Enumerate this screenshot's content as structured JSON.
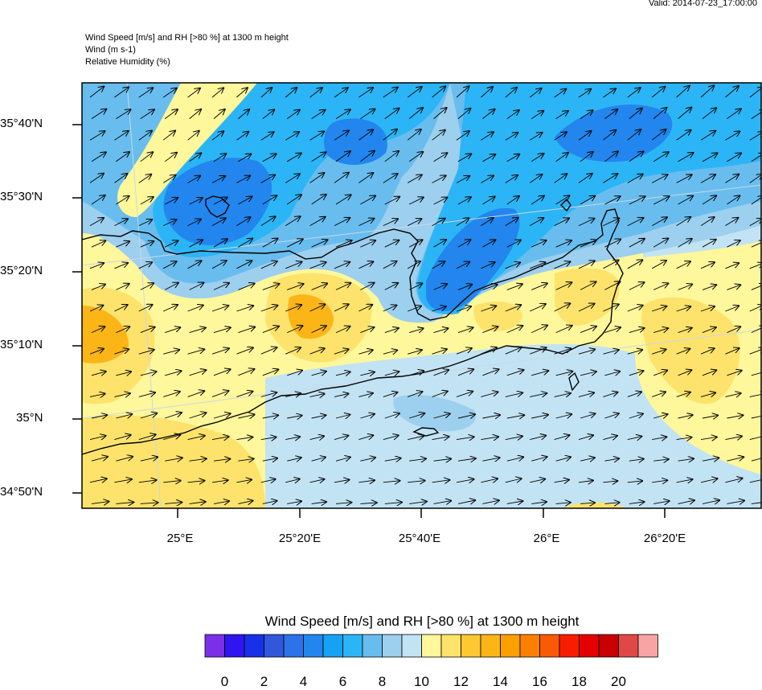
{
  "valid_text": "Valid: 2014-07-23_17:00:00",
  "titles": {
    "main": "Wind Speed [m/s] and RH [>80 %] at 1300 m height",
    "wind": "Wind   (m s-1)",
    "rh": "Relative Humidity   (%)"
  },
  "lat_labels": [
    "35°40'N",
    "35°30'N",
    "35°20'N",
    "35°10'N",
    "35°N",
    "34°50'N"
  ],
  "lon_labels": [
    "25°E",
    "25°20'E",
    "25°40'E",
    "26°E",
    "26°20'E"
  ],
  "colorbar": {
    "title": "Wind Speed [m/s] and RH [>80 %] at 1300 m height",
    "colors": [
      "#7b2fe8",
      "#2f16f0",
      "#1730e8",
      "#3158dc",
      "#2c72e8",
      "#2286ee",
      "#16a1f4",
      "#2cb5f6",
      "#68bdee",
      "#9dcfee",
      "#c2e3f3",
      "#fff79b",
      "#fde36b",
      "#fec833",
      "#fbb516",
      "#fca000",
      "#fb8000",
      "#f95a06",
      "#f91d00",
      "#e40000",
      "#c80000",
      "#e04848",
      "#f9a4a4"
    ],
    "tick_labels": [
      "0",
      "2",
      "4",
      "6",
      "8",
      "10",
      "12",
      "14",
      "16",
      "18",
      "20"
    ]
  },
  "wind_direction": "south-west to north-east"
}
